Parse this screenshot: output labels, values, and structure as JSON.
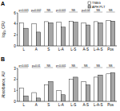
{
  "chart_data": [
    {
      "type": "bar",
      "title": "A",
      "y_label": "log₁₀ CFU",
      "categories": [
        "L",
        "A",
        "S",
        "L-A",
        "L-S",
        "A-S",
        "L-A-S",
        "Pos"
      ],
      "series": [
        {
          "name": "TSBG",
          "color": "#ffffff",
          "values": [
            4.2,
            4.0,
            4.4,
            4.3,
            4.5,
            4.2,
            4.4,
            4.6
          ]
        },
        {
          "name": "APH PLT",
          "color": "#a6a6a6",
          "values": [
            3.2,
            2.5,
            4.2,
            3.4,
            4.3,
            3.8,
            4.2,
            4.5
          ]
        }
      ],
      "annotations": [
        "p<0.001",
        "p=0.002",
        "NS",
        "p<0.001",
        "NS",
        "p=0.04",
        "NS",
        "NS"
      ],
      "ylim": [
        0,
        6
      ],
      "yticks": [
        0,
        2,
        4,
        6
      ],
      "legend": "top-right"
    },
    {
      "type": "bar",
      "title": "B",
      "y_label": "Absorbance, AU",
      "categories": [
        "L",
        "A",
        "S",
        "L-A",
        "L-S",
        "A-S",
        "L-A-S",
        "Pos"
      ],
      "series": [
        {
          "name": "TSBG",
          "color": "#ffffff",
          "values": [
            1.2,
            0.8,
            1.5,
            1.0,
            2.0,
            1.8,
            2.2,
            2.5
          ]
        },
        {
          "name": "APH PLT",
          "color": "#a6a6a6",
          "values": [
            0.5,
            0.3,
            1.8,
            0.6,
            2.2,
            1.5,
            2.4,
            2.6
          ]
        }
      ],
      "annotations": [
        "p<0.001",
        "p=0.01",
        "NS",
        "p<0.001",
        "NS",
        "NS",
        "NS",
        "NS"
      ],
      "ylim": [
        0,
        3
      ],
      "yticks": [
        0,
        1,
        2,
        3
      ]
    }
  ]
}
